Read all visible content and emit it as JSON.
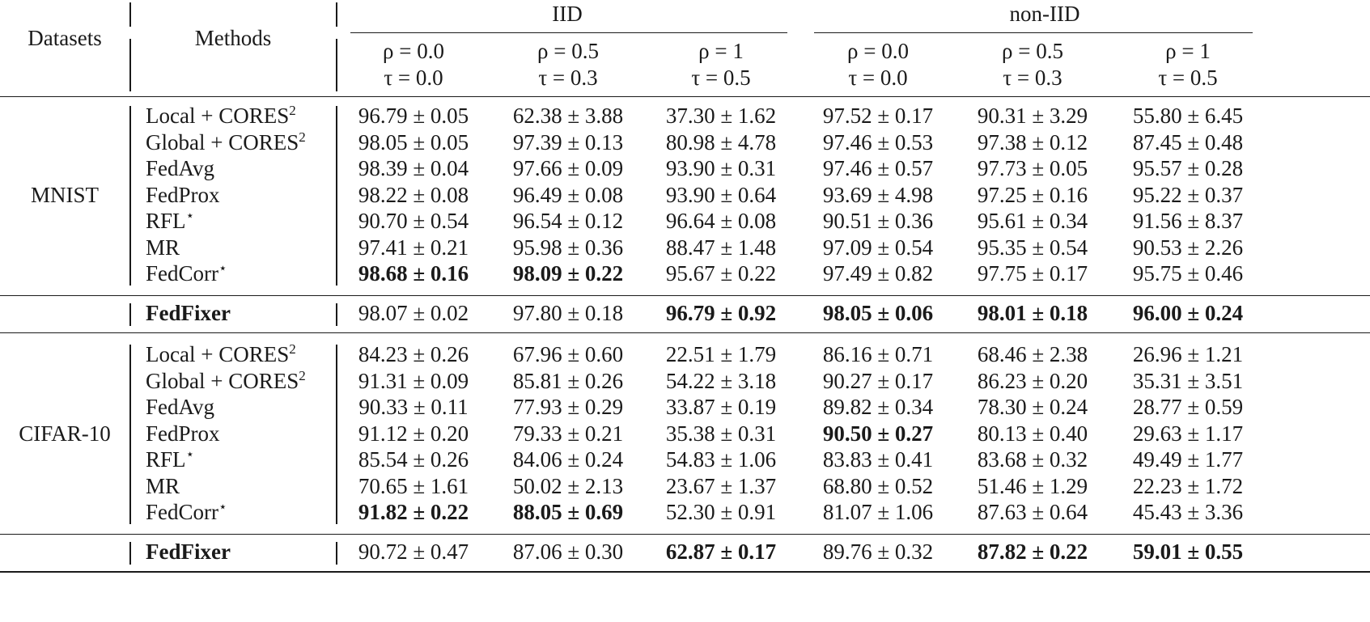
{
  "header": {
    "datasets": "Datasets",
    "methods": "Methods",
    "groups": [
      "IID",
      "non-IID"
    ],
    "settings": [
      {
        "rho": "ρ = 0.0",
        "tau": "τ = 0.0"
      },
      {
        "rho": "ρ = 0.5",
        "tau": "τ = 0.3"
      },
      {
        "rho": "ρ = 1",
        "tau": "τ = 0.5"
      },
      {
        "rho": "ρ = 0.0",
        "tau": "τ = 0.0"
      },
      {
        "rho": "ρ = 0.5",
        "tau": "τ = 0.3"
      },
      {
        "rho": "ρ = 1",
        "tau": "τ = 0.5"
      }
    ]
  },
  "blocks": [
    {
      "dataset": "MNIST",
      "rows": [
        {
          "method": "Local + CORES",
          "sup": "2",
          "cells": [
            "96.79 ± 0.05",
            "62.38 ± 3.88",
            "37.30 ± 1.62",
            "97.52 ± 0.17",
            "90.31 ± 3.29",
            "55.80 ± 6.45"
          ],
          "bold": [
            false,
            false,
            false,
            false,
            false,
            false
          ]
        },
        {
          "method": "Global + CORES",
          "sup": "2",
          "cells": [
            "98.05 ± 0.05",
            "97.39 ± 0.13",
            "80.98 ± 4.78",
            "97.46 ± 0.53",
            "97.38 ± 0.12",
            "87.45 ± 0.48"
          ],
          "bold": [
            false,
            false,
            false,
            false,
            false,
            false
          ]
        },
        {
          "method": "FedAvg",
          "sup": "",
          "cells": [
            "98.39 ± 0.04",
            "97.66 ± 0.09",
            "93.90 ± 0.31",
            "97.46 ± 0.57",
            "97.73 ± 0.05",
            "95.57 ± 0.28"
          ],
          "bold": [
            false,
            false,
            false,
            false,
            false,
            false
          ]
        },
        {
          "method": "FedProx",
          "sup": "",
          "cells": [
            "98.22 ± 0.08",
            "96.49 ± 0.08",
            "93.90 ± 0.64",
            "93.69 ± 4.98",
            "97.25 ± 0.16",
            "95.22 ± 0.37"
          ],
          "bold": [
            false,
            false,
            false,
            false,
            false,
            false
          ]
        },
        {
          "method": "RFL",
          "sup": "⋆",
          "cells": [
            "90.70 ± 0.54",
            "96.54 ± 0.12",
            "96.64 ± 0.08",
            "90.51 ± 0.36",
            "95.61 ± 0.34",
            "91.56 ± 8.37"
          ],
          "bold": [
            false,
            false,
            false,
            false,
            false,
            false
          ]
        },
        {
          "method": "MR",
          "sup": "",
          "cells": [
            "97.41 ± 0.21",
            "95.98 ± 0.36",
            "88.47 ± 1.48",
            "97.09 ± 0.54",
            "95.35 ± 0.54",
            "90.53 ± 2.26"
          ],
          "bold": [
            false,
            false,
            false,
            false,
            false,
            false
          ]
        },
        {
          "method": "FedCorr",
          "sup": "⋆",
          "cells": [
            "98.68 ± 0.16",
            "98.09 ± 0.22",
            "95.67 ± 0.22",
            "97.49 ± 0.82",
            "97.75 ± 0.17",
            "95.75 ± 0.46"
          ],
          "bold": [
            true,
            true,
            false,
            false,
            false,
            false
          ]
        }
      ],
      "ours": {
        "method": "FedFixer",
        "cells": [
          "98.07 ± 0.02",
          "97.80 ± 0.18",
          "96.79 ± 0.92",
          "98.05 ± 0.06",
          "98.01 ± 0.18",
          "96.00 ± 0.24"
        ],
        "bold": [
          false,
          false,
          true,
          true,
          true,
          true
        ]
      }
    },
    {
      "dataset": "CIFAR-10",
      "rows": [
        {
          "method": "Local + CORES",
          "sup": "2",
          "cells": [
            "84.23 ± 0.26",
            "67.96 ± 0.60",
            "22.51 ± 1.79",
            "86.16 ± 0.71",
            "68.46 ± 2.38",
            "26.96 ± 1.21"
          ],
          "bold": [
            false,
            false,
            false,
            false,
            false,
            false
          ]
        },
        {
          "method": "Global + CORES",
          "sup": "2",
          "cells": [
            "91.31 ± 0.09",
            "85.81 ± 0.26",
            "54.22 ± 3.18",
            "90.27 ± 0.17",
            "86.23 ± 0.20",
            "35.31 ± 3.51"
          ],
          "bold": [
            false,
            false,
            false,
            false,
            false,
            false
          ]
        },
        {
          "method": "FedAvg",
          "sup": "",
          "cells": [
            "90.33 ± 0.11",
            "77.93 ± 0.29",
            "33.87 ± 0.19",
            "89.82 ± 0.34",
            "78.30 ± 0.24",
            "28.77 ± 0.59"
          ],
          "bold": [
            false,
            false,
            false,
            false,
            false,
            false
          ]
        },
        {
          "method": "FedProx",
          "sup": "",
          "cells": [
            "91.12 ± 0.20",
            "79.33 ± 0.21",
            "35.38 ± 0.31",
            "90.50 ± 0.27",
            "80.13 ± 0.40",
            "29.63 ± 1.17"
          ],
          "bold": [
            false,
            false,
            false,
            true,
            false,
            false
          ]
        },
        {
          "method": "RFL",
          "sup": "⋆",
          "cells": [
            "85.54 ± 0.26",
            "84.06 ± 0.24",
            "54.83 ± 1.06",
            "83.83 ± 0.41",
            "83.68 ± 0.32",
            "49.49 ± 1.77"
          ],
          "bold": [
            false,
            false,
            false,
            false,
            false,
            false
          ]
        },
        {
          "method": "MR",
          "sup": "",
          "cells": [
            "70.65 ± 1.61",
            "50.02 ± 2.13",
            "23.67 ± 1.37",
            "68.80 ± 0.52",
            "51.46 ± 1.29",
            "22.23 ± 1.72"
          ],
          "bold": [
            false,
            false,
            false,
            false,
            false,
            false
          ]
        },
        {
          "method": "FedCorr",
          "sup": "⋆",
          "cells": [
            "91.82 ± 0.22",
            "88.05 ± 0.69",
            "52.30 ± 0.91",
            "81.07 ± 1.06",
            "87.63 ± 0.64",
            "45.43 ± 3.36"
          ],
          "bold": [
            true,
            true,
            false,
            false,
            false,
            false
          ]
        }
      ],
      "ours": {
        "method": "FedFixer",
        "cells": [
          "90.72 ± 0.47",
          "87.06 ± 0.30",
          "62.87 ± 0.17",
          "89.76 ± 0.32",
          "87.82 ± 0.22",
          "59.01 ± 0.55"
        ],
        "bold": [
          false,
          false,
          true,
          false,
          true,
          true
        ]
      }
    }
  ]
}
